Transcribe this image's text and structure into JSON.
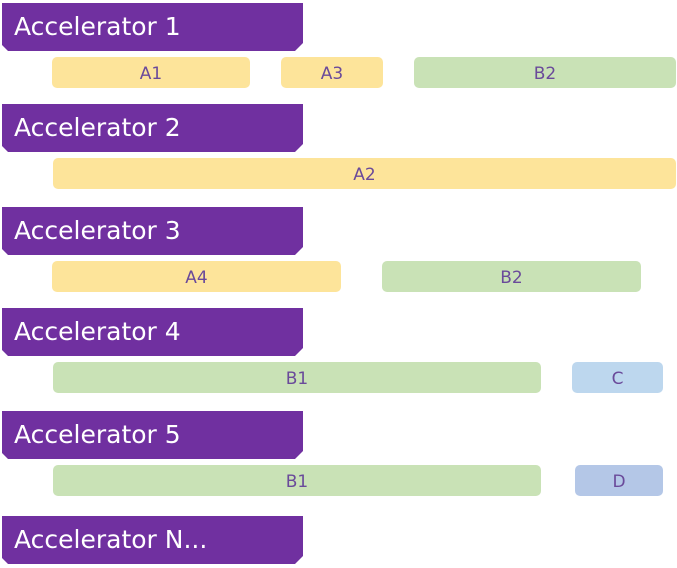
{
  "rows": [
    {
      "label": "Accelerator 1",
      "tasks": [
        "A1",
        "A3",
        "B2"
      ]
    },
    {
      "label": "Accelerator 2",
      "tasks": [
        "A2"
      ]
    },
    {
      "label": "Accelerator 3",
      "tasks": [
        "A4",
        "B2"
      ]
    },
    {
      "label": "Accelerator 4",
      "tasks": [
        "B1",
        "C"
      ]
    },
    {
      "label": "Accelerator 5",
      "tasks": [
        "B1",
        "D"
      ]
    },
    {
      "label": "Accelerator N...",
      "tasks": []
    }
  ]
}
